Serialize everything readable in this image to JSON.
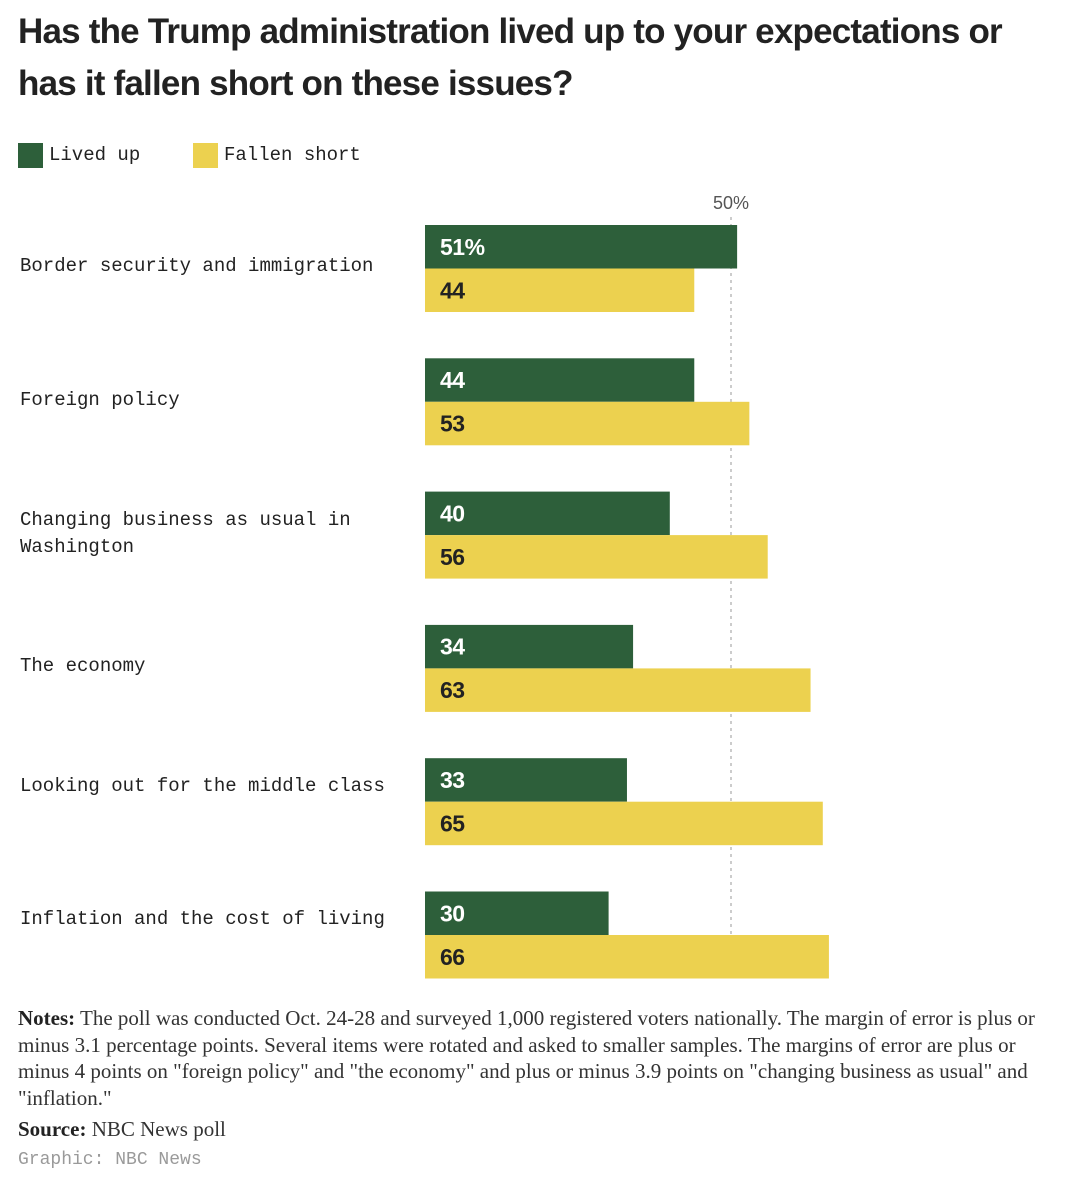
{
  "title": "Has the Trump administration lived up to your expectations or has it fallen short on these issues?",
  "legend": {
    "lived_up": "Lived up",
    "fallen_short": "Fallen short"
  },
  "colors": {
    "lived_up": "#2d5f3a",
    "fallen_short": "#ecd14f",
    "reference_line": "#bbbbbb"
  },
  "chart_data": {
    "type": "bar",
    "orientation": "horizontal",
    "title": "Has the Trump administration lived up to your expectations or has it fallen short on these issues?",
    "categories": [
      "Border security and immigration",
      "Foreign policy",
      "Changing business as usual in Washington",
      "The economy",
      "Looking out for the middle class",
      "Inflation and the cost of living"
    ],
    "series": [
      {
        "name": "Lived up",
        "values": [
          51,
          44,
          40,
          34,
          33,
          30
        ],
        "labels": [
          "51%",
          "44",
          "40",
          "34",
          "33",
          "30"
        ]
      },
      {
        "name": "Fallen short",
        "values": [
          44,
          53,
          56,
          63,
          65,
          66
        ],
        "labels": [
          "44",
          "53",
          "56",
          "63",
          "65",
          "66"
        ]
      }
    ],
    "xlim": [
      0,
      100
    ],
    "reference_line": {
      "value": 50,
      "label": "50%"
    },
    "xlabel": "",
    "ylabel": "",
    "grid": false,
    "legend_position": "top-left"
  },
  "notes": {
    "label": "Notes:",
    "text": " The poll was conducted Oct. 24-28 and surveyed 1,000 registered voters nationally. The margin of error is plus or minus 3.1 percentage points. Several items were rotated and asked to smaller samples. The margins of error are plus or minus 4 points on \"foreign policy\" and \"the economy\" and plus or minus 3.9 points on \"changing business as usual\" and \"inflation.\""
  },
  "source": {
    "label": "Source:",
    "text": " NBC News poll"
  },
  "credit": "Graphic: NBC News"
}
